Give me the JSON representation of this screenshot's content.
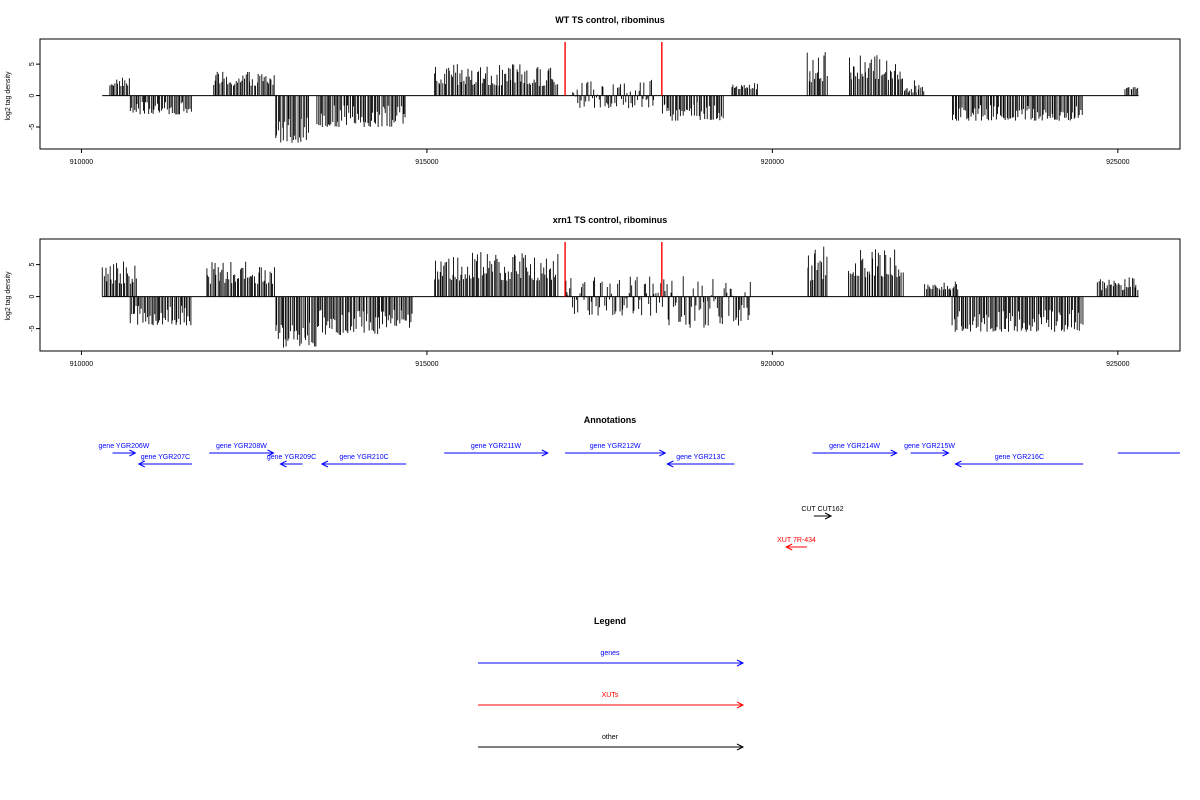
{
  "chart_data": [
    {
      "type": "bar",
      "title": "WT TS control, ribominus",
      "ylabel": "log2 tag density",
      "xlim": [
        909400,
        925900
      ],
      "ylim": [
        -8.5,
        9
      ],
      "x_ticks": [
        "910000",
        "915000",
        "920000",
        "925000"
      ],
      "y_ticks": [
        "-5",
        "0",
        "5"
      ],
      "baseline_range": [
        910300,
        925300
      ],
      "markers": [
        {
          "x": 917000,
          "color": "#ff0000"
        },
        {
          "x": 918400,
          "color": "#ff0000"
        }
      ],
      "segments": [
        {
          "start": 910400,
          "end": 910700,
          "min": 1.5,
          "max": 3.0
        },
        {
          "start": 910700,
          "end": 911600,
          "min": -3.0,
          "max": -1.0
        },
        {
          "start": 911900,
          "end": 912800,
          "min": 1.5,
          "max": 4.0
        },
        {
          "start": 912800,
          "end": 913300,
          "min": -7.5,
          "max": -3.0
        },
        {
          "start": 913400,
          "end": 914700,
          "min": -5.0,
          "max": -1.5
        },
        {
          "start": 915100,
          "end": 916900,
          "min": 1.5,
          "max": 5.0
        },
        {
          "start": 917100,
          "end": 918300,
          "min": -2.0,
          "max": 2.5
        },
        {
          "start": 918400,
          "end": 919300,
          "min": -4.0,
          "max": -1.0
        },
        {
          "start": 919400,
          "end": 919800,
          "min": 1.0,
          "max": 2.0
        },
        {
          "start": 920500,
          "end": 920800,
          "min": 2.0,
          "max": 8.0
        },
        {
          "start": 921100,
          "end": 921900,
          "min": 2.5,
          "max": 6.5
        },
        {
          "start": 921900,
          "end": 922200,
          "min": 0.5,
          "max": 2.5
        },
        {
          "start": 922600,
          "end": 924500,
          "min": -4.0,
          "max": -1.5
        },
        {
          "start": 925100,
          "end": 925300,
          "min": 1.0,
          "max": 1.5
        }
      ]
    },
    {
      "type": "bar",
      "title": "xrn1 TS control, ribominus",
      "ylabel": "log2 tag density",
      "xlim": [
        909400,
        925900
      ],
      "ylim": [
        -8.5,
        9
      ],
      "x_ticks": [
        "910000",
        "915000",
        "920000",
        "925000"
      ],
      "y_ticks": [
        "-5",
        "0",
        "5"
      ],
      "baseline_range": [
        910300,
        925300
      ],
      "markers": [
        {
          "x": 917000,
          "color": "#ff0000"
        },
        {
          "x": 918400,
          "color": "#ff0000"
        }
      ],
      "segments": [
        {
          "start": 910300,
          "end": 910800,
          "min": 2.0,
          "max": 5.5
        },
        {
          "start": 910700,
          "end": 911600,
          "min": -4.5,
          "max": -1.0
        },
        {
          "start": 911800,
          "end": 912800,
          "min": 2.0,
          "max": 5.5
        },
        {
          "start": 912800,
          "end": 913400,
          "min": -8.0,
          "max": -4.0
        },
        {
          "start": 913400,
          "end": 914800,
          "min": -6.0,
          "max": -2.0
        },
        {
          "start": 915100,
          "end": 916900,
          "min": 2.5,
          "max": 7.0
        },
        {
          "start": 917000,
          "end": 918400,
          "min": -3.0,
          "max": 3.5
        },
        {
          "start": 918400,
          "end": 919700,
          "min": -5.0,
          "max": 3.5
        },
        {
          "start": 920500,
          "end": 920800,
          "min": 2.5,
          "max": 8.5
        },
        {
          "start": 921100,
          "end": 921900,
          "min": 3.0,
          "max": 7.5
        },
        {
          "start": 922200,
          "end": 922700,
          "min": 1.0,
          "max": 2.5
        },
        {
          "start": 922600,
          "end": 924500,
          "min": -5.5,
          "max": -2.0
        },
        {
          "start": 924700,
          "end": 925300,
          "min": 1.0,
          "max": 3.0
        }
      ]
    }
  ],
  "annotations": {
    "title": "Annotations",
    "features": [
      {
        "label": "gene YGR206W",
        "start": 910450,
        "end": 910780,
        "strand": "+",
        "row": 0,
        "color": "#0000ff"
      },
      {
        "label": "gene YGR207C",
        "start": 910830,
        "end": 911600,
        "strand": "-",
        "row": 1,
        "color": "#0000ff"
      },
      {
        "label": "gene YGR208W",
        "start": 911850,
        "end": 912780,
        "strand": "+",
        "row": 0,
        "color": "#0000ff"
      },
      {
        "label": "gene YGR209C",
        "start": 912880,
        "end": 913200,
        "strand": "-",
        "row": 1,
        "color": "#0000ff"
      },
      {
        "label": "gene YGR210C",
        "start": 913480,
        "end": 914700,
        "strand": "-",
        "row": 1,
        "color": "#0000ff"
      },
      {
        "label": "gene YGR211W",
        "start": 915250,
        "end": 916750,
        "strand": "+",
        "row": 0,
        "color": "#0000ff"
      },
      {
        "label": "gene YGR212W",
        "start": 917000,
        "end": 918450,
        "strand": "+",
        "row": 0,
        "color": "#0000ff"
      },
      {
        "label": "gene YGR213C",
        "start": 918480,
        "end": 919450,
        "strand": "-",
        "row": 1,
        "color": "#0000ff"
      },
      {
        "label": "gene YGR214W",
        "start": 920580,
        "end": 921800,
        "strand": "+",
        "row": 0,
        "color": "#0000ff"
      },
      {
        "label": "gene YGR215W",
        "start": 922000,
        "end": 922550,
        "strand": "+",
        "row": 0,
        "color": "#0000ff"
      },
      {
        "label": "gene YGR216C",
        "start": 922650,
        "end": 924500,
        "strand": "-",
        "row": 1,
        "color": "#0000ff"
      },
      {
        "label": "",
        "start": 925000,
        "end": 925900,
        "strand": ".",
        "row": 0,
        "color": "#0000ff"
      },
      {
        "label": "CUT CUT162",
        "start": 920600,
        "end": 920850,
        "strand": "+",
        "row": 2,
        "color": "#000000"
      },
      {
        "label": "XUT 7R-434",
        "start": 920200,
        "end": 920500,
        "strand": "-",
        "row": 3,
        "color": "#ff0000"
      }
    ]
  },
  "legend": {
    "title": "Legend",
    "items": [
      {
        "label": "genes",
        "color": "#0000ff"
      },
      {
        "label": "XUTs",
        "color": "#ff0000"
      },
      {
        "label": "other",
        "color": "#000000"
      }
    ]
  }
}
